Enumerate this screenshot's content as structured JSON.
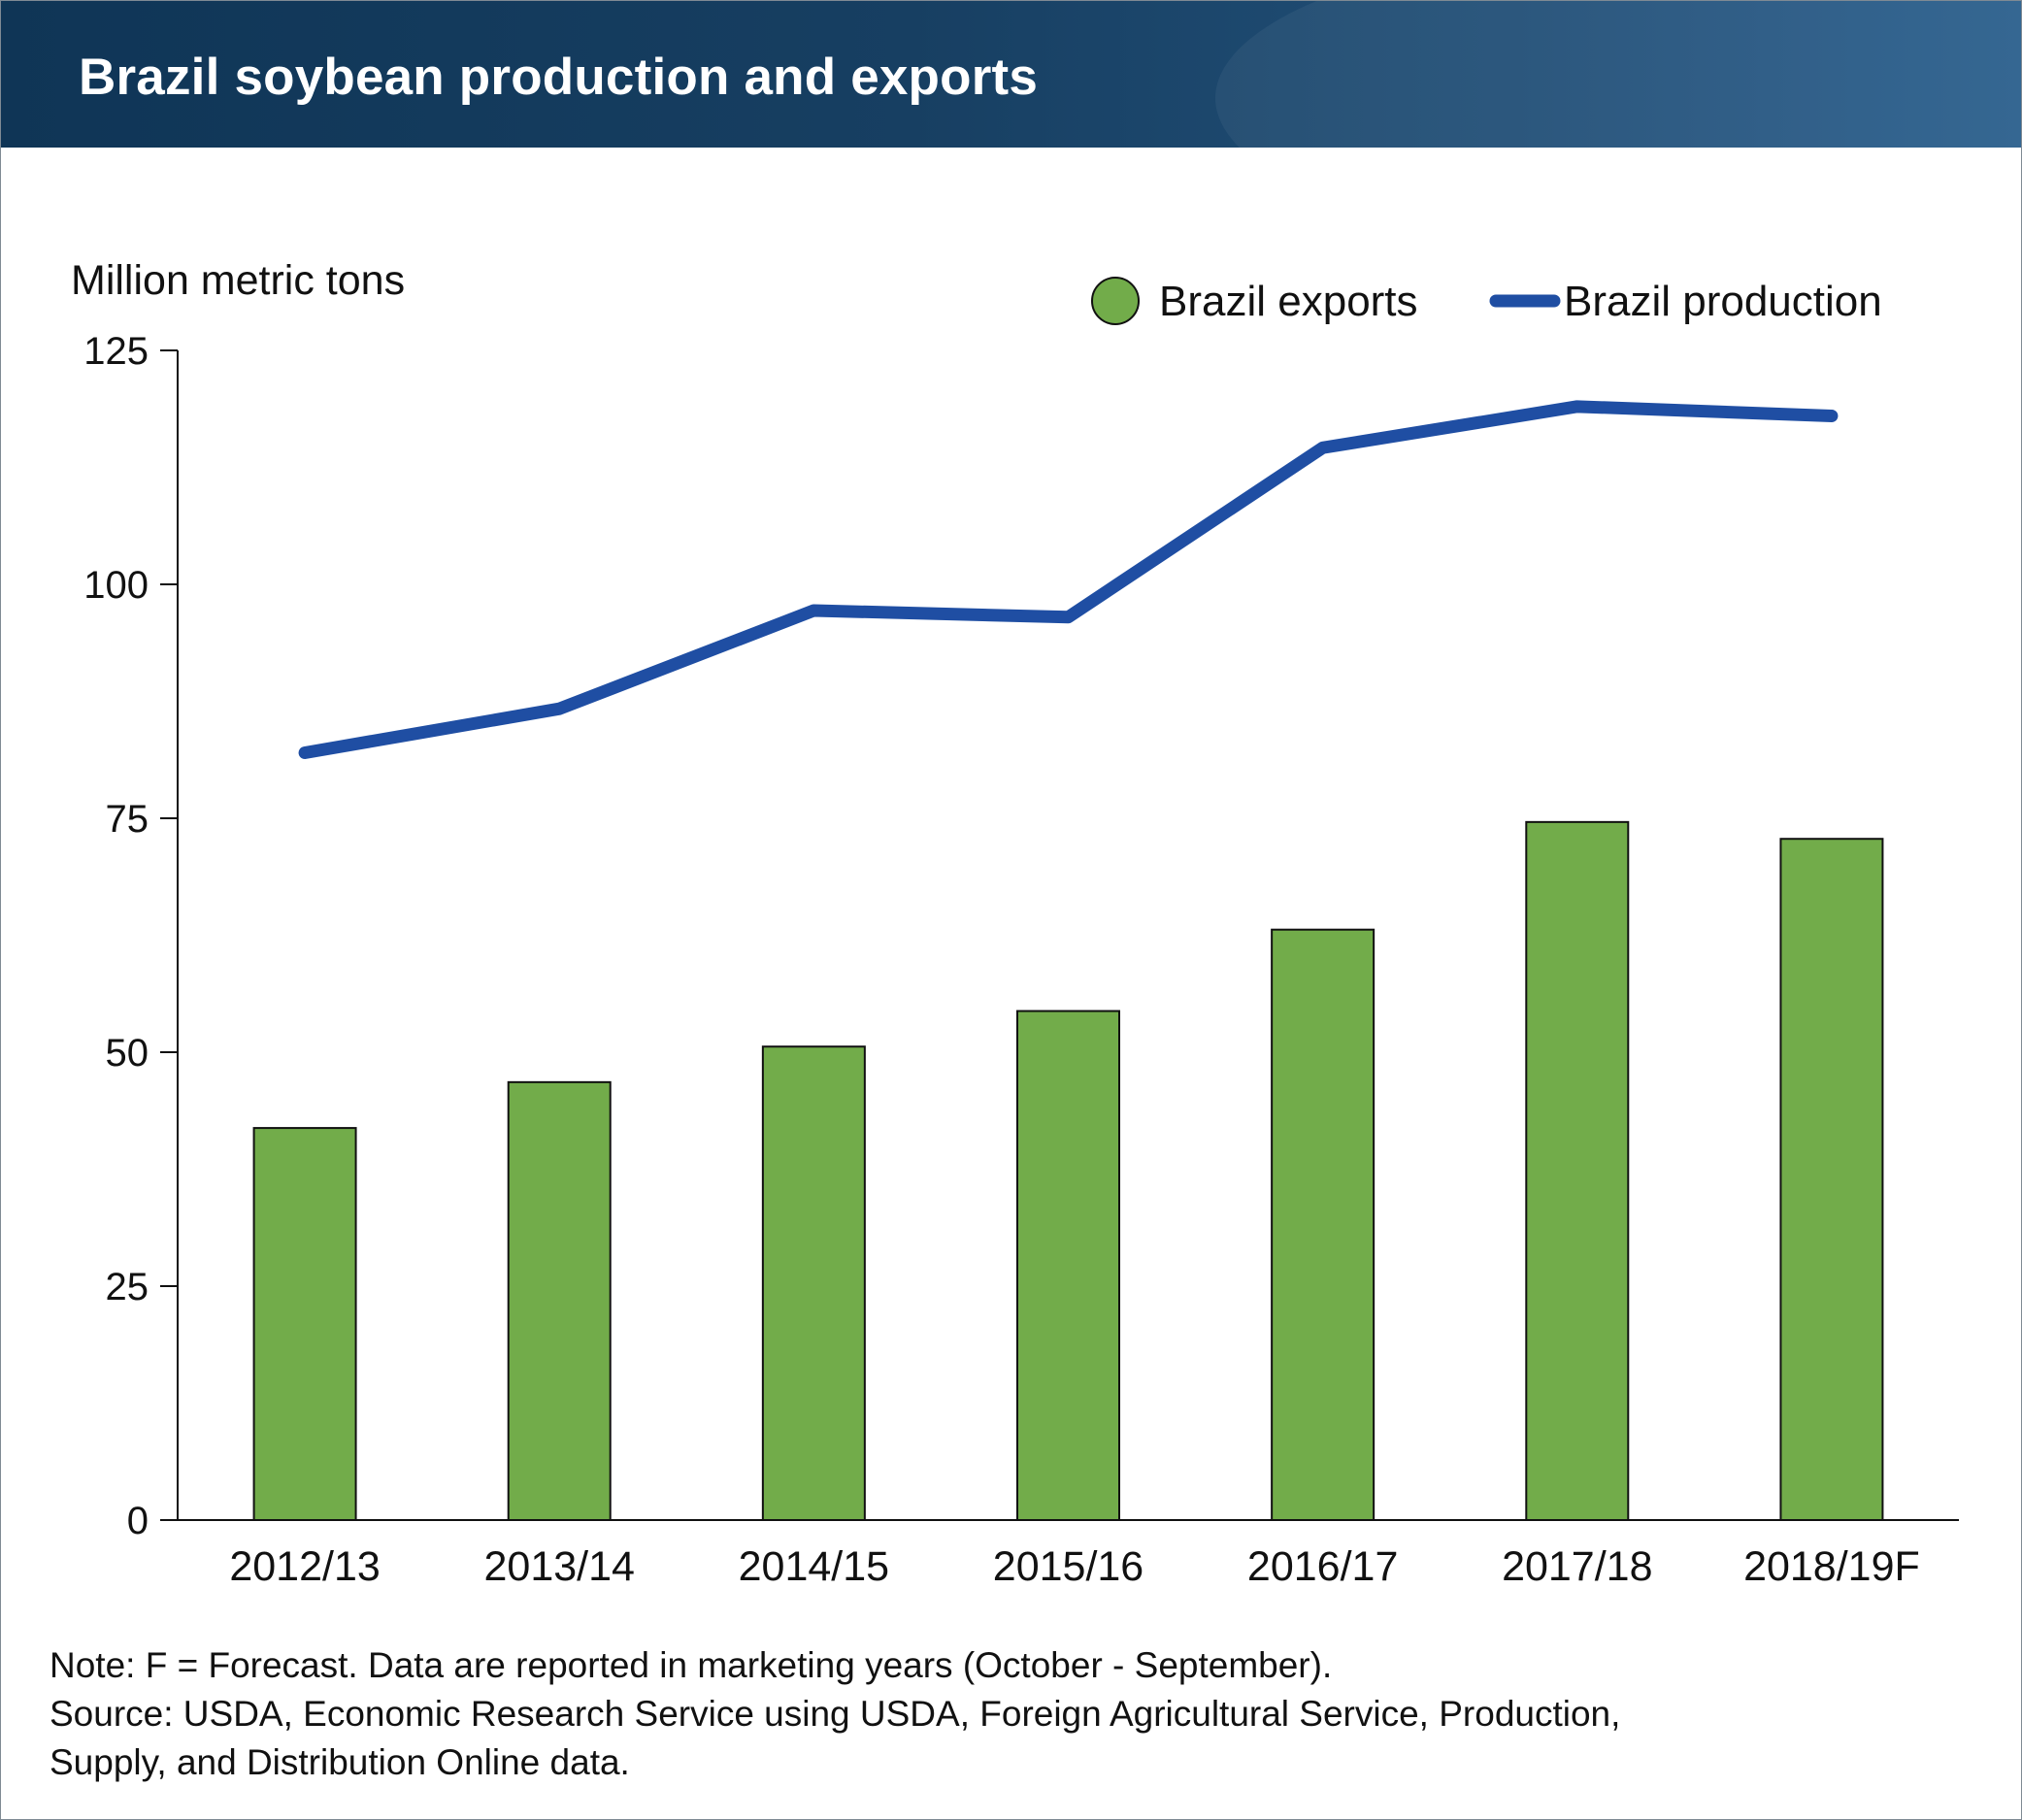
{
  "title": "Brazil soybean production and exports",
  "chart_data": {
    "type": "bar",
    "title": "Brazil soybean production and exports",
    "ylabel": "Million metric tons",
    "xlabel": "",
    "ylim": [
      0,
      125
    ],
    "yticks": [
      0,
      25,
      50,
      75,
      100,
      125
    ],
    "categories": [
      "2012/13",
      "2013/14",
      "2014/15",
      "2015/16",
      "2016/17",
      "2017/18",
      "2018/19F"
    ],
    "series": [
      {
        "name": "Brazil exports",
        "type": "bar",
        "color": "#72ac4a",
        "values": [
          41.9,
          46.8,
          50.6,
          54.4,
          63.1,
          74.6,
          72.8
        ]
      },
      {
        "name": "Brazil production",
        "type": "line",
        "color": "#1f4ea3",
        "values": [
          82,
          86.7,
          97.2,
          96.5,
          114.6,
          119.0,
          118.0
        ]
      }
    ],
    "legend_position": "top-right",
    "grid": false
  },
  "note": "Note: F = Forecast. Data are reported in marketing years (October - September).",
  "source_lines": [
    "Source: USDA, Economic Research Service using USDA, Foreign Agricultural Service, Production,",
    "Supply, and Distribution Online data."
  ]
}
